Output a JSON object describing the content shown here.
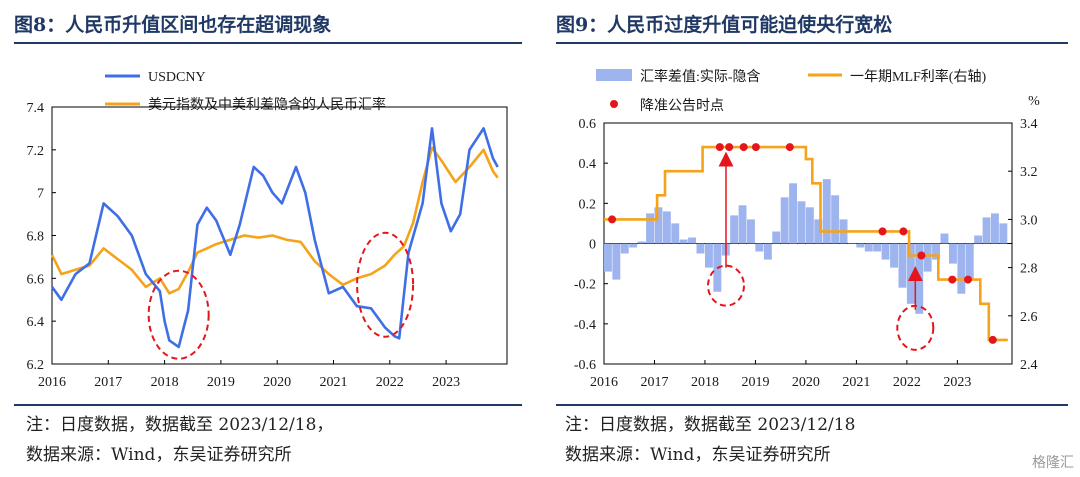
{
  "panels": [
    {
      "title": "图8：人民币升值区间也存在超调现象",
      "note1": "注：日度数据，数据截至 2023/12/18，",
      "note2": "数据来源：Wind，东吴证券研究所"
    },
    {
      "title": "图9：人民币过度升值可能迫使央行宽松",
      "note1": "注：日度数据，数据截至 2023/12/18",
      "note2": "数据来源：Wind，东吴证券研究所"
    }
  ],
  "watermark": "格隆汇",
  "chart_data": [
    {
      "type": "line",
      "x_type": "date",
      "xticks": [
        "2016",
        "2017",
        "2018",
        "2019",
        "2020",
        "2021",
        "2022",
        "2023"
      ],
      "xlim": [
        "2016-01-01",
        "2023-12-31"
      ],
      "ylim": [
        6.2,
        7.4
      ],
      "yticks": [
        "6.2",
        "6.4",
        "6.6",
        "6.8",
        "7",
        "7.2",
        "7.4"
      ],
      "legend": "top-left",
      "colors": {
        "USDCNY": "#3f6fe6",
        "implied": "#f5a31a",
        "annotation": "#e4161c"
      },
      "series": [
        {
          "name": "USDCNY",
          "x": [
            "2016-01",
            "2016-03",
            "2016-06",
            "2016-09",
            "2016-12",
            "2017-03",
            "2017-06",
            "2017-09",
            "2017-12",
            "2018-01",
            "2018-02",
            "2018-04",
            "2018-06",
            "2018-08",
            "2018-10",
            "2018-12",
            "2019-03",
            "2019-05",
            "2019-08",
            "2019-10",
            "2019-12",
            "2020-02",
            "2020-05",
            "2020-07",
            "2020-09",
            "2020-12",
            "2021-03",
            "2021-06",
            "2021-09",
            "2021-12",
            "2022-02",
            "2022-03",
            "2022-05",
            "2022-08",
            "2022-10",
            "2022-12",
            "2023-02",
            "2023-04",
            "2023-06",
            "2023-09",
            "2023-11",
            "2023-12"
          ],
          "values": [
            6.56,
            6.5,
            6.62,
            6.67,
            6.95,
            6.89,
            6.8,
            6.62,
            6.54,
            6.4,
            6.31,
            6.28,
            6.45,
            6.85,
            6.93,
            6.87,
            6.71,
            6.85,
            7.12,
            7.08,
            7.0,
            6.95,
            7.12,
            7.0,
            6.78,
            6.53,
            6.56,
            6.47,
            6.46,
            6.37,
            6.33,
            6.32,
            6.72,
            6.95,
            7.3,
            6.95,
            6.82,
            6.9,
            7.2,
            7.3,
            7.16,
            7.12
          ]
        },
        {
          "name": "美元指数及中美利差隐含的人民币汇率",
          "x": [
            "2016-01",
            "2016-03",
            "2016-06",
            "2016-09",
            "2016-12",
            "2017-03",
            "2017-06",
            "2017-09",
            "2017-12",
            "2018-02",
            "2018-04",
            "2018-06",
            "2018-08",
            "2018-10",
            "2018-12",
            "2019-03",
            "2019-06",
            "2019-09",
            "2019-12",
            "2020-03",
            "2020-06",
            "2020-09",
            "2020-12",
            "2021-03",
            "2021-06",
            "2021-09",
            "2021-12",
            "2022-02",
            "2022-04",
            "2022-06",
            "2022-08",
            "2022-10",
            "2022-12",
            "2023-03",
            "2023-06",
            "2023-09",
            "2023-11",
            "2023-12"
          ],
          "values": [
            6.71,
            6.62,
            6.64,
            6.66,
            6.74,
            6.69,
            6.64,
            6.56,
            6.6,
            6.53,
            6.55,
            6.63,
            6.72,
            6.74,
            6.76,
            6.78,
            6.8,
            6.79,
            6.8,
            6.78,
            6.77,
            6.68,
            6.62,
            6.57,
            6.6,
            6.62,
            6.66,
            6.71,
            6.75,
            6.86,
            7.05,
            7.21,
            7.15,
            7.05,
            7.12,
            7.2,
            7.1,
            7.07
          ]
        }
      ],
      "annotations": [
        {
          "type": "ellipse",
          "center": [
            "2018-04",
            6.43
          ]
        },
        {
          "type": "ellipse",
          "center": [
            "2021-12",
            6.57
          ]
        }
      ]
    },
    {
      "type": "bar+line",
      "x_type": "date",
      "xticks": [
        "2016",
        "2017",
        "2018",
        "2019",
        "2020",
        "2021",
        "2022",
        "2023"
      ],
      "xlim": [
        "2016-01-01",
        "2023-12-31"
      ],
      "ylim_left": [
        -0.6,
        0.6
      ],
      "yticks_left": [
        "-0.6",
        "-0.4",
        "-0.2",
        "0",
        "0.2",
        "0.4",
        "0.6"
      ],
      "ylim_right": [
        2.4,
        3.4
      ],
      "yticks_right": [
        "2.4",
        "2.6",
        "2.8",
        "3.0",
        "3.2",
        "3.4"
      ],
      "right_unit": "%",
      "legend": "top",
      "colors": {
        "bars": "#9db4ef",
        "mlf": "#f5a31a",
        "cuts": "#e4161c"
      },
      "bar_series": {
        "name": "汇率差值:实际-隐含",
        "x": [
          "2016-01",
          "2016-03",
          "2016-05",
          "2016-07",
          "2016-09",
          "2016-11",
          "2017-01",
          "2017-03",
          "2017-05",
          "2017-07",
          "2017-09",
          "2017-11",
          "2018-01",
          "2018-03",
          "2018-05",
          "2018-07",
          "2018-09",
          "2018-11",
          "2019-01",
          "2019-03",
          "2019-05",
          "2019-07",
          "2019-09",
          "2019-11",
          "2020-01",
          "2020-03",
          "2020-05",
          "2020-07",
          "2020-09",
          "2020-11",
          "2021-01",
          "2021-03",
          "2021-05",
          "2021-07",
          "2021-09",
          "2021-11",
          "2022-01",
          "2022-03",
          "2022-05",
          "2022-07",
          "2022-09",
          "2022-11",
          "2023-01",
          "2023-03",
          "2023-05",
          "2023-07",
          "2023-09",
          "2023-11"
        ],
        "values": [
          -0.14,
          -0.18,
          -0.05,
          -0.02,
          0.01,
          0.15,
          0.18,
          0.16,
          0.1,
          0.02,
          0.03,
          -0.05,
          -0.12,
          -0.24,
          -0.06,
          0.14,
          0.19,
          0.12,
          -0.04,
          -0.08,
          0.06,
          0.23,
          0.3,
          0.21,
          0.18,
          0.12,
          0.32,
          0.24,
          0.12,
          0.0,
          -0.02,
          -0.04,
          -0.04,
          -0.08,
          -0.12,
          -0.22,
          -0.3,
          -0.35,
          -0.14,
          -0.08,
          0.05,
          -0.1,
          -0.25,
          -0.18,
          0.04,
          0.13,
          0.15,
          0.1
        ]
      },
      "line_series": {
        "name": "一年期MLF利率(右轴)",
        "x": [
          "2016-01-01",
          "2017-01-20",
          "2017-03-16",
          "2017-12-14",
          "2018-01-01",
          "2019-12-31",
          "2020-02-17",
          "2020-04-15",
          "2021-12-31",
          "2022-01-17",
          "2022-08-15",
          "2023-06-15",
          "2023-08-15",
          "2023-12-31"
        ],
        "values": [
          3.0,
          3.1,
          3.2,
          3.3,
          3.3,
          3.25,
          3.15,
          2.95,
          2.95,
          2.85,
          2.75,
          2.65,
          2.5,
          2.5
        ]
      },
      "point_series": {
        "name": "降准公告时点",
        "x": [
          "2016-02-29",
          "2018-04-17",
          "2018-06-24",
          "2018-10-07",
          "2019-01-04",
          "2019-09-06",
          "2021-07-07",
          "2021-12-06",
          "2022-04-15",
          "2022-11-25",
          "2023-03-17",
          "2023-09-14"
        ],
        "values_right": [
          3.0,
          3.3,
          3.3,
          3.3,
          3.3,
          3.3,
          2.95,
          2.95,
          2.85,
          2.75,
          2.75,
          2.5
        ]
      },
      "annotations": [
        {
          "type": "ellipse",
          "center": [
            "2018-06",
            -0.21
          ]
        },
        {
          "type": "ellipse",
          "center": [
            "2022-03",
            -0.42
          ]
        },
        {
          "type": "arrow",
          "from": [
            "2018-06",
            -0.21
          ],
          "to": [
            "2018-06",
            0.45
          ]
        },
        {
          "type": "arrow",
          "from": [
            "2022-03",
            -0.42
          ],
          "to": [
            "2022-03",
            -0.12
          ]
        }
      ]
    }
  ]
}
